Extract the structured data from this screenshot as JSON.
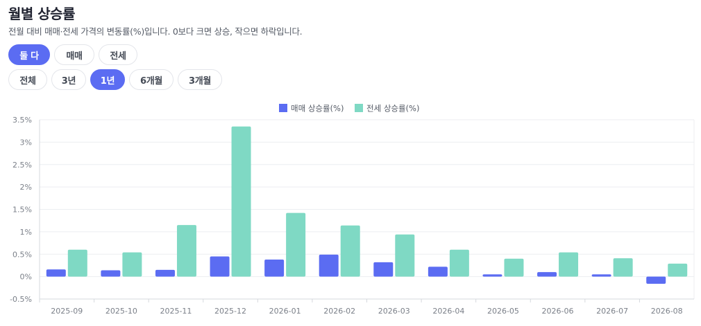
{
  "page": {
    "title": "월별 상승률",
    "subtitle": "전월 대비 매매·전세 가격의 변동률(%)입니다. 0보다 크면 상승, 작으면 하락입니다."
  },
  "type_filter": {
    "options": [
      "둘 다",
      "매매",
      "전세"
    ],
    "active": 0
  },
  "period_filter": {
    "options": [
      "전체",
      "3년",
      "1년",
      "6개월",
      "3개월"
    ],
    "active": 2
  },
  "colors": {
    "sale": "#5b6cf2",
    "jeonse": "#7fd9c4",
    "accent": "#5b6cf2"
  },
  "chart_data": {
    "type": "bar",
    "title": "",
    "xlabel": "",
    "ylabel": "",
    "ylim": [
      -0.5,
      3.5
    ],
    "yticks": [
      -0.5,
      0,
      0.5,
      1,
      1.5,
      2,
      2.5,
      3,
      3.5
    ],
    "ytick_labels": [
      "-0.5%",
      "0%",
      "0.5%",
      "1%",
      "1.5%",
      "2%",
      "2.5%",
      "3%",
      "3.5%"
    ],
    "grid": true,
    "legend": "top-center",
    "categories": [
      "2025-09",
      "2025-10",
      "2025-11",
      "2025-12",
      "2026-01",
      "2026-02",
      "2026-03",
      "2026-04",
      "2026-05",
      "2026-06",
      "2026-07",
      "2026-08"
    ],
    "series": [
      {
        "name": "매매 상승률(%)",
        "values": [
          0.16,
          0.14,
          0.15,
          0.45,
          0.38,
          0.49,
          0.32,
          0.22,
          0.05,
          0.1,
          0.05,
          -0.16
        ]
      },
      {
        "name": "전세 상승률(%)",
        "values": [
          0.6,
          0.54,
          1.15,
          3.35,
          1.42,
          1.14,
          0.94,
          0.6,
          0.4,
          0.54,
          0.41,
          0.29
        ]
      }
    ]
  }
}
